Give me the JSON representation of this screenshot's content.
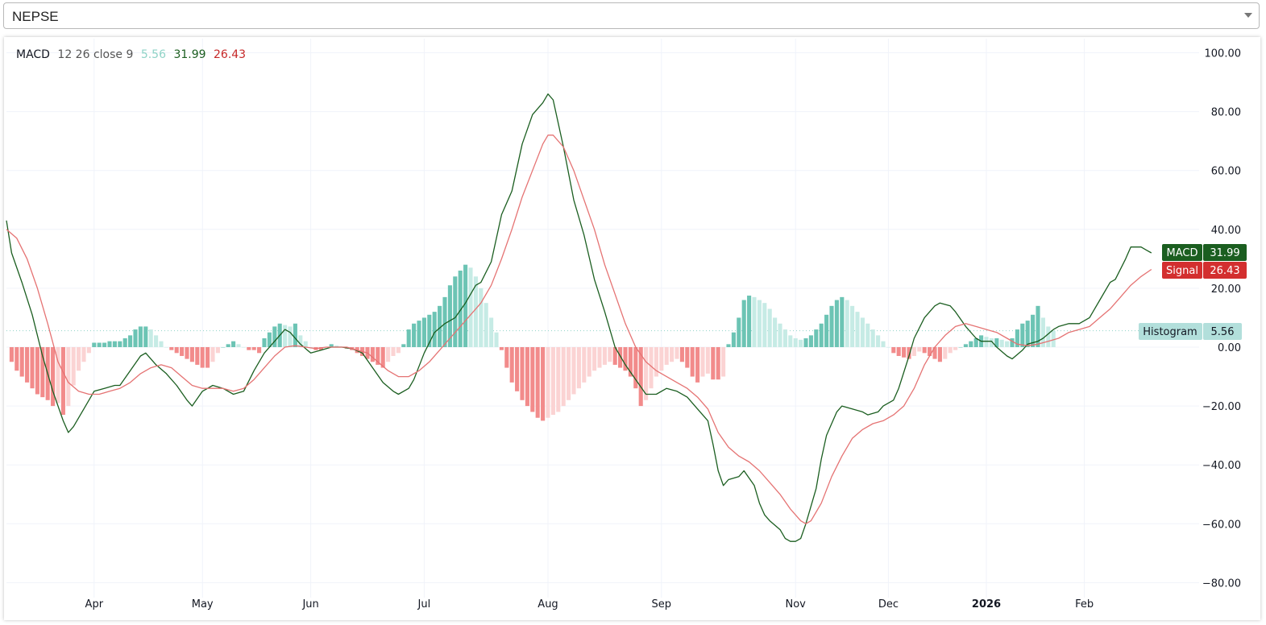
{
  "symbol_select": {
    "value": "NEPSE"
  },
  "legend": {
    "name": "MACD",
    "params": "12 26 close 9",
    "histogram_value": "5.56",
    "macd_value": "31.99",
    "signal_value": "26.43"
  },
  "badges": {
    "macd_label": "MACD",
    "macd_value": "31.99",
    "signal_label": "Signal",
    "signal_value": "26.43",
    "histogram_label": "Histogram",
    "histogram_value": "5.56"
  },
  "colors": {
    "macd_line": "#1b5e20",
    "signal_line": "#e57373",
    "hist_pos_strong": "#6cc4b4",
    "hist_pos_weak": "#c6ebe5",
    "hist_neg_strong": "#f28b8b",
    "hist_neg_weak": "#fbd3d3"
  },
  "chart_data": {
    "type": "line",
    "title": "",
    "ylim": [
      -80,
      100
    ],
    "y_ticks": [
      "100.00",
      "80.00",
      "60.00",
      "40.00",
      "20.00",
      "0.00",
      "−20.00",
      "−40.00",
      "−60.00",
      "−80.00"
    ],
    "y_tick_values": [
      100,
      80,
      60,
      40,
      20,
      0,
      -20,
      -40,
      -60,
      -80
    ],
    "x_ticks": [
      {
        "label": "Apr",
        "t": 24,
        "bold": false
      },
      {
        "label": "May",
        "t": 45,
        "bold": false
      },
      {
        "label": "Jun",
        "t": 66,
        "bold": false
      },
      {
        "label": "Jul",
        "t": 88,
        "bold": false
      },
      {
        "label": "Aug",
        "t": 112,
        "bold": false
      },
      {
        "label": "Sep",
        "t": 134,
        "bold": false
      },
      {
        "label": "Nov",
        "t": 160,
        "bold": false
      },
      {
        "label": "Dec",
        "t": 178,
        "bold": false
      },
      {
        "label": "2026",
        "t": 197,
        "bold": true
      },
      {
        "label": "Feb",
        "t": 216,
        "bold": false
      }
    ],
    "t_range": [
      7,
      231
    ],
    "grid": true,
    "series": [
      {
        "name": "MACD",
        "points": [
          [
            7,
            43
          ],
          [
            8,
            32
          ],
          [
            10,
            22
          ],
          [
            12,
            11
          ],
          [
            14,
            -3
          ],
          [
            16,
            -15
          ],
          [
            18,
            -25
          ],
          [
            19,
            -29
          ],
          [
            20,
            -27
          ],
          [
            22,
            -21
          ],
          [
            24,
            -15
          ],
          [
            26,
            -14
          ],
          [
            28,
            -13
          ],
          [
            29,
            -13
          ],
          [
            31,
            -8
          ],
          [
            33,
            -3
          ],
          [
            34,
            -2
          ],
          [
            36,
            -6
          ],
          [
            38,
            -9
          ],
          [
            40,
            -13
          ],
          [
            42,
            -18
          ],
          [
            43,
            -20
          ],
          [
            45,
            -15
          ],
          [
            47,
            -13
          ],
          [
            49,
            -14
          ],
          [
            51,
            -16
          ],
          [
            53,
            -15
          ],
          [
            55,
            -8
          ],
          [
            57,
            -2
          ],
          [
            59,
            2
          ],
          [
            61,
            6
          ],
          [
            62,
            5
          ],
          [
            64,
            1
          ],
          [
            66,
            -2
          ],
          [
            68,
            -1
          ],
          [
            70,
            0
          ],
          [
            72,
            0
          ],
          [
            74,
            -0.5
          ],
          [
            76,
            -2
          ],
          [
            78,
            -7
          ],
          [
            80,
            -12
          ],
          [
            82,
            -15
          ],
          [
            83,
            -16
          ],
          [
            85,
            -14
          ],
          [
            86,
            -11
          ],
          [
            88,
            -2
          ],
          [
            90,
            5
          ],
          [
            92,
            8
          ],
          [
            94,
            10
          ],
          [
            96,
            15
          ],
          [
            98,
            21
          ],
          [
            99,
            22
          ],
          [
            101,
            29
          ],
          [
            103,
            45
          ],
          [
            105,
            53
          ],
          [
            107,
            69
          ],
          [
            109,
            79
          ],
          [
            111,
            83
          ],
          [
            112,
            86
          ],
          [
            113,
            84
          ],
          [
            115,
            68
          ],
          [
            117,
            50
          ],
          [
            119,
            38
          ],
          [
            121,
            23
          ],
          [
            123,
            12
          ],
          [
            125,
            0
          ],
          [
            127,
            -6
          ],
          [
            129,
            -11
          ],
          [
            131,
            -16
          ],
          [
            133,
            -16
          ],
          [
            135,
            -14
          ],
          [
            137,
            -15
          ],
          [
            139,
            -17
          ],
          [
            141,
            -21
          ],
          [
            143,
            -25
          ],
          [
            144,
            -33
          ],
          [
            145,
            -42
          ],
          [
            146,
            -47
          ],
          [
            147,
            -45
          ],
          [
            149,
            -44
          ],
          [
            150,
            -42
          ],
          [
            152,
            -47
          ],
          [
            153,
            -53
          ],
          [
            154,
            -57
          ],
          [
            155,
            -59
          ],
          [
            157,
            -62
          ],
          [
            158,
            -65
          ],
          [
            159,
            -66
          ],
          [
            160,
            -66
          ],
          [
            161,
            -65
          ],
          [
            162,
            -60
          ],
          [
            164,
            -48
          ],
          [
            165,
            -38
          ],
          [
            166,
            -30
          ],
          [
            168,
            -22
          ],
          [
            169,
            -20
          ],
          [
            171,
            -21
          ],
          [
            173,
            -22
          ],
          [
            174,
            -23
          ],
          [
            176,
            -22
          ],
          [
            177,
            -20
          ],
          [
            179,
            -18
          ],
          [
            180,
            -14
          ],
          [
            182,
            -3
          ],
          [
            183,
            3
          ],
          [
            185,
            10
          ],
          [
            187,
            14
          ],
          [
            188,
            15
          ],
          [
            190,
            14
          ],
          [
            191,
            12
          ],
          [
            193,
            7
          ],
          [
            195,
            3
          ],
          [
            196,
            2
          ],
          [
            198,
            2
          ],
          [
            199,
            0
          ],
          [
            201,
            -3
          ],
          [
            202,
            -4
          ],
          [
            204,
            -1
          ],
          [
            205,
            1
          ],
          [
            207,
            2
          ],
          [
            208,
            3
          ],
          [
            210,
            6
          ],
          [
            211,
            7
          ],
          [
            213,
            8
          ],
          [
            215,
            8
          ],
          [
            217,
            10
          ],
          [
            219,
            16
          ],
          [
            221,
            22
          ],
          [
            222,
            23
          ],
          [
            224,
            30
          ],
          [
            225,
            34
          ],
          [
            227,
            34
          ],
          [
            228,
            33
          ],
          [
            229,
            32
          ]
        ]
      },
      {
        "name": "Signal",
        "points": [
          [
            7,
            40
          ],
          [
            9,
            37
          ],
          [
            11,
            30
          ],
          [
            13,
            20
          ],
          [
            15,
            8
          ],
          [
            17,
            -5
          ],
          [
            19,
            -12
          ],
          [
            21,
            -15
          ],
          [
            23,
            -16
          ],
          [
            25,
            -16
          ],
          [
            27,
            -15
          ],
          [
            29,
            -14
          ],
          [
            31,
            -12
          ],
          [
            33,
            -9
          ],
          [
            35,
            -7
          ],
          [
            37,
            -6
          ],
          [
            39,
            -7
          ],
          [
            41,
            -10
          ],
          [
            43,
            -13
          ],
          [
            45,
            -14
          ],
          [
            47,
            -14
          ],
          [
            49,
            -14
          ],
          [
            51,
            -15
          ],
          [
            53,
            -14
          ],
          [
            55,
            -11
          ],
          [
            57,
            -7
          ],
          [
            59,
            -3
          ],
          [
            61,
            0
          ],
          [
            63,
            0.5
          ],
          [
            65,
            0
          ],
          [
            67,
            -0.5
          ],
          [
            69,
            0
          ],
          [
            71,
            0
          ],
          [
            73,
            0
          ],
          [
            75,
            -1
          ],
          [
            77,
            -2
          ],
          [
            79,
            -5
          ],
          [
            81,
            -8
          ],
          [
            83,
            -10
          ],
          [
            85,
            -10
          ],
          [
            87,
            -8
          ],
          [
            89,
            -5
          ],
          [
            91,
            -1
          ],
          [
            93,
            3
          ],
          [
            95,
            7
          ],
          [
            97,
            11
          ],
          [
            99,
            15
          ],
          [
            101,
            21
          ],
          [
            103,
            30
          ],
          [
            105,
            40
          ],
          [
            107,
            51
          ],
          [
            109,
            60
          ],
          [
            111,
            69
          ],
          [
            112,
            72
          ],
          [
            113,
            72
          ],
          [
            115,
            68
          ],
          [
            117,
            60
          ],
          [
            119,
            50
          ],
          [
            121,
            40
          ],
          [
            123,
            28
          ],
          [
            125,
            18
          ],
          [
            127,
            8
          ],
          [
            129,
            0
          ],
          [
            131,
            -5
          ],
          [
            133,
            -8
          ],
          [
            135,
            -10
          ],
          [
            137,
            -12
          ],
          [
            139,
            -14
          ],
          [
            141,
            -17
          ],
          [
            143,
            -21
          ],
          [
            145,
            -29
          ],
          [
            147,
            -34
          ],
          [
            149,
            -37
          ],
          [
            151,
            -39
          ],
          [
            153,
            -42
          ],
          [
            155,
            -46
          ],
          [
            157,
            -50
          ],
          [
            159,
            -55
          ],
          [
            161,
            -59
          ],
          [
            162,
            -60
          ],
          [
            163,
            -59
          ],
          [
            165,
            -53
          ],
          [
            167,
            -44
          ],
          [
            169,
            -37
          ],
          [
            171,
            -31
          ],
          [
            173,
            -28
          ],
          [
            175,
            -26
          ],
          [
            177,
            -25
          ],
          [
            179,
            -23
          ],
          [
            181,
            -20
          ],
          [
            183,
            -14
          ],
          [
            185,
            -6
          ],
          [
            187,
            0
          ],
          [
            189,
            4
          ],
          [
            191,
            7
          ],
          [
            193,
            8
          ],
          [
            195,
            7
          ],
          [
            197,
            6
          ],
          [
            199,
            5
          ],
          [
            201,
            3
          ],
          [
            203,
            1
          ],
          [
            205,
            0.5
          ],
          [
            207,
            1
          ],
          [
            209,
            2
          ],
          [
            211,
            3
          ],
          [
            213,
            5
          ],
          [
            215,
            6
          ],
          [
            217,
            7
          ],
          [
            219,
            10
          ],
          [
            221,
            13
          ],
          [
            223,
            17
          ],
          [
            225,
            21
          ],
          [
            227,
            24
          ],
          [
            229,
            26.4
          ]
        ]
      },
      {
        "name": "Histogram",
        "t_start": 8,
        "values": [
          -5,
          -8,
          -10,
          -12,
          -14,
          -16,
          -17,
          -18,
          -20,
          -19,
          -23,
          -20,
          -13,
          -8,
          -5,
          -2,
          1.5,
          1.5,
          1.5,
          2,
          2,
          2,
          3,
          4,
          6,
          7,
          7,
          6,
          4,
          2,
          0,
          -1,
          -2,
          -3,
          -4,
          -5,
          -6,
          -7,
          -7,
          -5,
          -2,
          0,
          1,
          2,
          1,
          0,
          -1,
          -1,
          -2,
          3,
          5,
          7,
          8,
          7.5,
          7,
          8,
          4,
          2,
          0,
          -1,
          -1,
          0,
          1,
          0.5,
          0.2,
          -0.5,
          -1,
          -2,
          -3,
          -4,
          -5,
          -6,
          -7,
          -5,
          -3,
          -2,
          1,
          6,
          8,
          9,
          10,
          11,
          12,
          14,
          17,
          21,
          24,
          26,
          28,
          27,
          24,
          20,
          15,
          10,
          5,
          -1,
          -7,
          -12,
          -15,
          -18,
          -20,
          -22,
          -24,
          -25,
          -24,
          -23,
          -22,
          -20,
          -18,
          -16,
          -14,
          -12,
          -10,
          -8,
          -7,
          -6,
          -5,
          -6,
          -7,
          -8,
          -10,
          -14,
          -20,
          -18,
          -14,
          -10,
          -8,
          -6,
          -5,
          -4,
          -5,
          -7,
          -10,
          -12,
          -10,
          -9,
          -11,
          -11,
          -10,
          1,
          5,
          10,
          16,
          17.5,
          17,
          16,
          15,
          13,
          10,
          8,
          6,
          4,
          3,
          2.5,
          3,
          4,
          6,
          8,
          11,
          14,
          16,
          17,
          16,
          14,
          12,
          10,
          8,
          6,
          4,
          2,
          0,
          -2,
          -3,
          -3.5,
          -4,
          -3,
          -1.5,
          -2,
          -3,
          -4,
          -5,
          -4,
          -2,
          -1,
          0,
          1,
          2,
          3,
          4,
          3.5,
          3,
          3,
          2.5,
          2,
          3,
          6,
          8,
          9,
          11,
          14,
          10,
          7,
          5.56
        ]
      }
    ]
  }
}
